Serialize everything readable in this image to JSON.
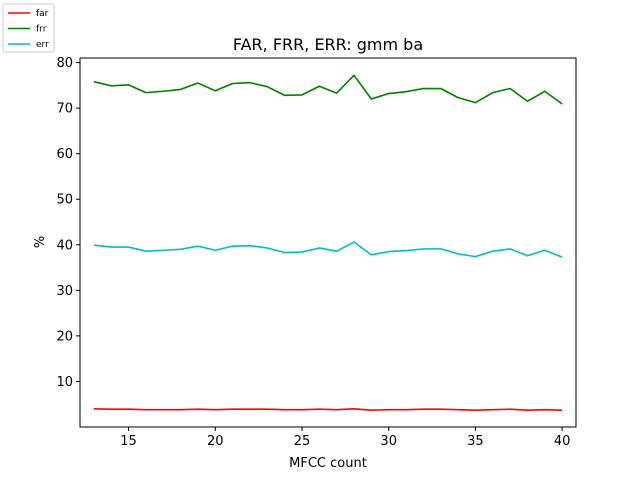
{
  "chart_data": {
    "type": "line",
    "title": "FAR, FRR, ERR: gmm ba",
    "xlabel": "MFCC count",
    "ylabel": "%",
    "xlim": [
      12.2,
      40.8
    ],
    "ylim": [
      0.0,
      81.0
    ],
    "xticks": [
      15,
      20,
      25,
      30,
      35,
      40
    ],
    "yticks": [
      10,
      20,
      30,
      40,
      50,
      60,
      70,
      80
    ],
    "legend_position": "upper-left-outside",
    "grid": false,
    "x": [
      13,
      14,
      15,
      16,
      17,
      18,
      19,
      20,
      21,
      22,
      23,
      24,
      25,
      26,
      27,
      28,
      29,
      30,
      31,
      32,
      33,
      34,
      35,
      36,
      37,
      38,
      39,
      40
    ],
    "series": [
      {
        "name": "far",
        "color": "#ff0000",
        "values": [
          4.0,
          3.9,
          3.9,
          3.8,
          3.8,
          3.8,
          3.9,
          3.8,
          3.9,
          3.9,
          3.9,
          3.8,
          3.8,
          3.9,
          3.8,
          4.0,
          3.7,
          3.8,
          3.8,
          3.9,
          3.9,
          3.8,
          3.7,
          3.8,
          3.9,
          3.7,
          3.8,
          3.7
        ]
      },
      {
        "name": "frr",
        "color": "#008000",
        "values": [
          75.8,
          74.9,
          75.1,
          73.4,
          73.7,
          74.1,
          75.5,
          73.8,
          75.4,
          75.6,
          74.7,
          72.8,
          72.9,
          74.8,
          73.3,
          77.2,
          72.0,
          73.2,
          73.6,
          74.3,
          74.3,
          72.3,
          71.2,
          73.4,
          74.3,
          71.5,
          73.7,
          70.9
        ]
      },
      {
        "name": "err",
        "color": "#00bfbf",
        "values": [
          39.9,
          39.5,
          39.5,
          38.6,
          38.8,
          39.0,
          39.7,
          38.8,
          39.7,
          39.8,
          39.3,
          38.3,
          38.4,
          39.3,
          38.6,
          40.6,
          37.8,
          38.5,
          38.7,
          39.1,
          39.1,
          38.0,
          37.4,
          38.6,
          39.1,
          37.6,
          38.8,
          37.3
        ]
      }
    ]
  }
}
